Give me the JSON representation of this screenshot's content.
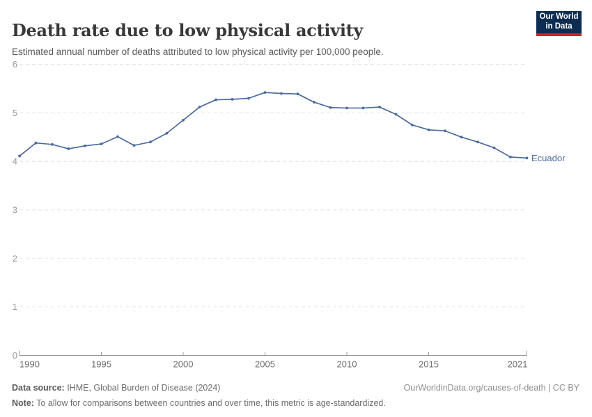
{
  "header": {
    "title": "Death rate due to low physical activity",
    "subtitle": "Estimated annual number of deaths attributed to low physical activity per 100,000 people."
  },
  "logo": {
    "line1": "Our World",
    "line2": "in Data",
    "bg_color": "#0D2C51",
    "stripe_color": "#C4262E"
  },
  "chart_data": {
    "type": "line",
    "title": "Death rate due to low physical activity",
    "subtitle": "Estimated annual number of deaths attributed to low physical activity per 100,000 people.",
    "x": [
      1990,
      1991,
      1992,
      1993,
      1994,
      1995,
      1996,
      1997,
      1998,
      1999,
      2000,
      2001,
      2002,
      2003,
      2004,
      2005,
      2006,
      2007,
      2008,
      2009,
      2010,
      2011,
      2012,
      2013,
      2014,
      2015,
      2016,
      2017,
      2018,
      2019,
      2020,
      2021
    ],
    "series": [
      {
        "name": "Ecuador",
        "color": "#4C6A9C",
        "values": [
          4.11,
          4.38,
          4.35,
          4.26,
          4.32,
          4.36,
          4.51,
          4.33,
          4.4,
          4.58,
          4.85,
          5.12,
          5.27,
          5.28,
          5.3,
          5.42,
          5.4,
          5.39,
          5.22,
          5.11,
          5.1,
          5.1,
          5.12,
          4.97,
          4.75,
          4.65,
          4.63,
          4.5,
          4.4,
          4.28,
          4.09,
          4.07
        ]
      }
    ],
    "xlabel": "",
    "ylabel": "",
    "ylim": [
      0,
      6
    ],
    "yticks": [
      0,
      1,
      2,
      3,
      4,
      5,
      6
    ],
    "xticks": [
      1990,
      1995,
      2000,
      2005,
      2010,
      2015,
      2021
    ],
    "grid": true,
    "gridline_color": "#e0e0e0",
    "axis_color": "#999999",
    "ytick_label_color": "#9a9a9a",
    "xtick_label_color": "#6e6e6e",
    "legend_position": "end-of-line",
    "end_label": "Ecuador"
  },
  "footer": {
    "source_label": "Data source:",
    "source_text": " IHME, Global Burden of Disease (2024)",
    "note_label": "Note:",
    "note_text": " To allow for comparisons between countries and over time, this metric is age-standardized.",
    "link": "OurWorldinData.org/causes-of-death | CC BY"
  }
}
